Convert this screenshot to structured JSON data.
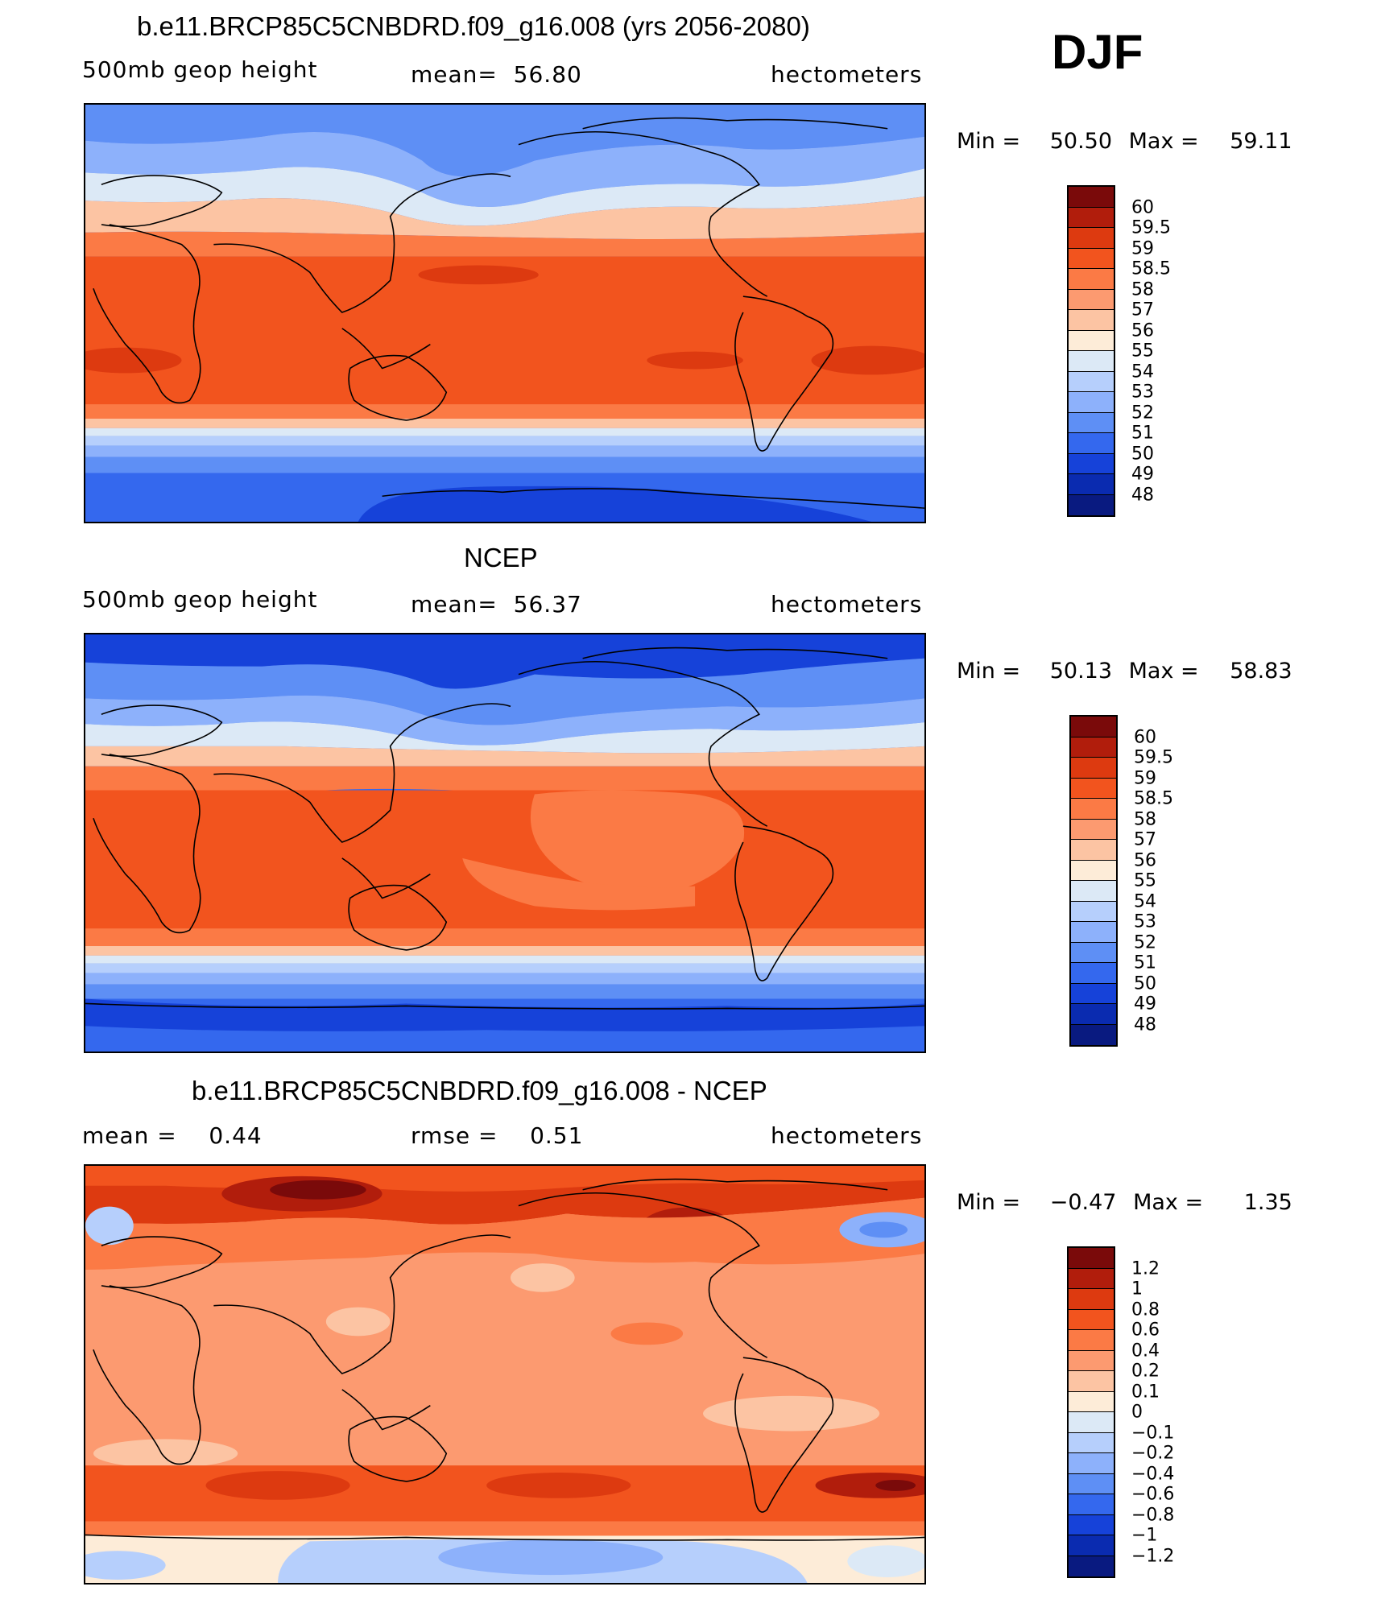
{
  "season_label": "DJF",
  "panels": [
    {
      "id": "model",
      "title": "b.e11.BRCP85C5CNBDRD.f09_g16.008 (yrs 2056-2080)",
      "variable": "500mb geop height",
      "stat_text": "mean=  56.80",
      "units": "hectometers",
      "min_label": "Min =",
      "min_value": "50.50",
      "max_label": "Max =",
      "max_value": "59.11",
      "colorbar_labels": [
        "60",
        "59.5",
        "59",
        "58.5",
        "58",
        "57",
        "56",
        "55",
        "54",
        "53",
        "52",
        "51",
        "50",
        "49",
        "48"
      ]
    },
    {
      "id": "obs",
      "title": "NCEP",
      "variable": "500mb geop height",
      "stat_text": "mean=  56.37",
      "units": "hectometers",
      "min_label": "Min =",
      "min_value": "50.13",
      "max_label": "Max =",
      "max_value": "58.83",
      "colorbar_labels": [
        "60",
        "59.5",
        "59",
        "58.5",
        "58",
        "57",
        "56",
        "55",
        "54",
        "53",
        "52",
        "51",
        "50",
        "49",
        "48"
      ]
    },
    {
      "id": "diff",
      "title": "b.e11.BRCP85C5CNBDRD.f09_g16.008 - NCEP",
      "mean_text": "mean =    0.44",
      "rmse_text": "rmse =    0.51",
      "units": "hectometers",
      "min_label": "Min =",
      "min_value": "−0.47",
      "max_label": "Max =",
      "max_value": "1.35",
      "colorbar_labels": [
        "1.2",
        "1",
        "0.8",
        "0.6",
        "0.4",
        "0.2",
        "0.1",
        "0",
        "−0.1",
        "−0.2",
        "−0.4",
        "−0.6",
        "−0.8",
        "−1",
        "−1.2"
      ]
    }
  ],
  "colors": {
    "height_scale": [
      "#7a0a0a",
      "#b11d0c",
      "#dd3a10",
      "#f2541e",
      "#fb7a45",
      "#fc9a70",
      "#fcc4a3",
      "#fdecd8",
      "#dce9f6",
      "#b6cffc",
      "#8db1fb",
      "#5e8ff5",
      "#3468ee",
      "#1642d9",
      "#0a2bb0",
      "#091a80"
    ],
    "diff_scale": [
      "#7a0a0a",
      "#b11d0c",
      "#dd3a10",
      "#f2541e",
      "#fb7a45",
      "#fc9a70",
      "#fcc4a3",
      "#fdecd8",
      "#dce9f6",
      "#b6cffc",
      "#8db1fb",
      "#5e8ff5",
      "#3468ee",
      "#1642d9",
      "#0a2bb0",
      "#091a80"
    ]
  }
}
